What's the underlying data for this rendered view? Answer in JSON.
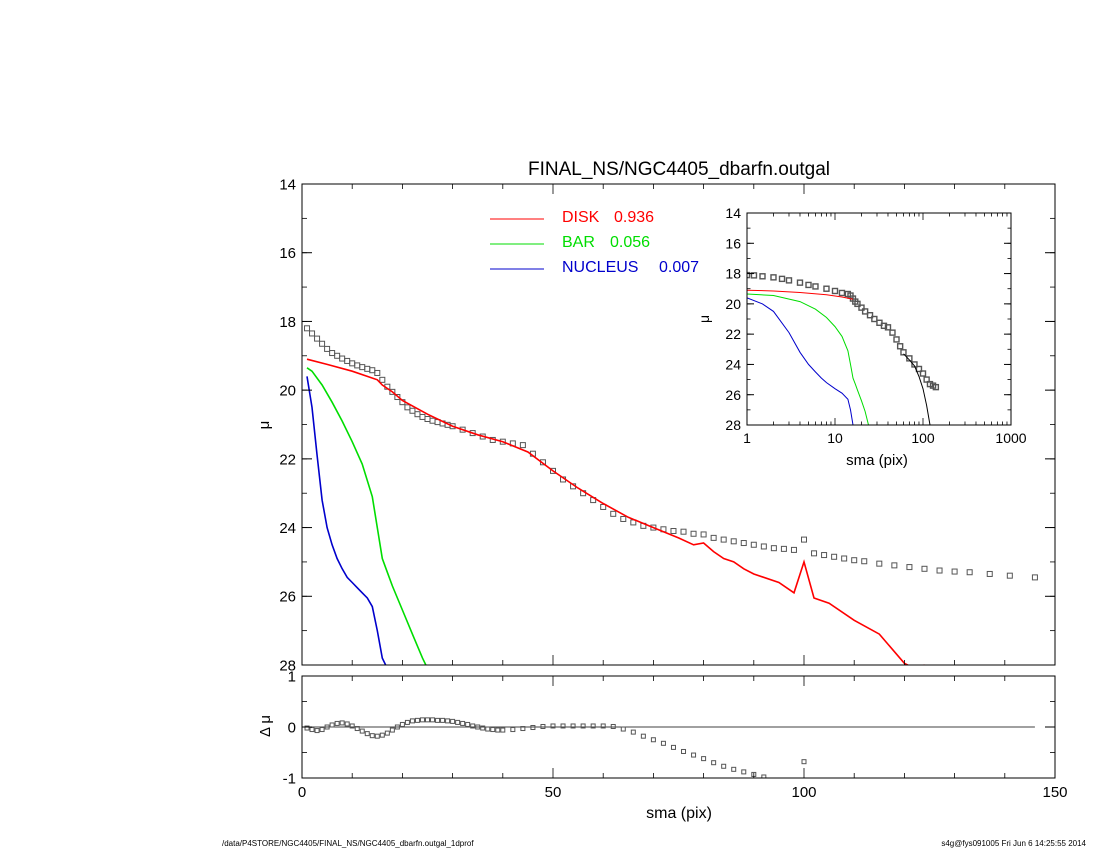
{
  "footer": {
    "path": "/data/P4STORE/NGC4405/FINAL_NS/NGC4405_dbarfn.outgal_1dprof",
    "stamp": "s4g@fys091005  Fri Jun  6 14:25:55 2014"
  },
  "chart_data": [
    {
      "id": "main",
      "type": "scatter",
      "title": "FINAL_NS/NGC4405_dbarfn.outgal",
      "xlabel": "",
      "ylabel": "μ",
      "xlim": [
        0,
        150
      ],
      "ylim": [
        28,
        14
      ],
      "yticks": [
        "14",
        "16",
        "18",
        "20",
        "22",
        "24",
        "26",
        "28"
      ],
      "legend": {
        "placement": "top-center",
        "entries": [
          {
            "label": "DISK",
            "value": "0.936",
            "color": "#ff0000"
          },
          {
            "label": "BAR",
            "value": "0.056",
            "color": "#00dd00"
          },
          {
            "label": "NUCLEUS",
            "value": "0.007",
            "color": "#0000cc"
          }
        ]
      },
      "series": [
        {
          "kind": "data",
          "color": "#555555",
          "x": [
            1,
            2,
            3,
            4,
            5,
            6,
            7,
            8,
            9,
            10,
            11,
            12,
            13,
            14,
            15,
            16,
            17,
            18,
            19,
            20,
            21,
            22,
            23,
            24,
            25,
            26,
            27,
            28,
            29,
            30,
            32,
            34,
            36,
            38,
            40,
            42,
            44,
            46,
            48,
            50,
            52,
            54,
            56,
            58,
            60,
            62,
            64,
            66,
            68,
            70,
            72,
            74,
            76,
            78,
            80,
            82,
            84,
            86,
            88,
            90,
            92,
            94,
            96,
            98,
            100,
            102,
            104,
            106,
            108,
            110,
            112,
            115,
            118,
            121,
            124,
            127,
            130,
            133,
            137,
            141,
            146
          ],
          "y": [
            18.2,
            18.35,
            18.5,
            18.65,
            18.8,
            18.92,
            19.0,
            19.08,
            19.15,
            19.22,
            19.28,
            19.33,
            19.38,
            19.42,
            19.5,
            19.7,
            19.9,
            20.05,
            20.2,
            20.35,
            20.5,
            20.6,
            20.7,
            20.78,
            20.84,
            20.89,
            20.93,
            20.97,
            21.01,
            21.05,
            21.15,
            21.25,
            21.35,
            21.45,
            21.5,
            21.55,
            21.6,
            21.85,
            22.1,
            22.35,
            22.6,
            22.8,
            23.0,
            23.2,
            23.4,
            23.6,
            23.75,
            23.85,
            23.95,
            24.0,
            24.05,
            24.1,
            24.12,
            24.18,
            24.2,
            24.3,
            24.35,
            24.4,
            24.45,
            24.5,
            24.55,
            24.6,
            24.62,
            24.65,
            24.35,
            24.75,
            24.8,
            24.85,
            24.9,
            24.95,
            24.98,
            25.05,
            25.1,
            25.15,
            25.2,
            25.25,
            25.28,
            25.3,
            25.35,
            25.4,
            25.45
          ]
        },
        {
          "kind": "model",
          "name": "DISK",
          "color": "#ff0000",
          "x": [
            1,
            5,
            10,
            15,
            16,
            18,
            20,
            25,
            30,
            35,
            40,
            45,
            50,
            55,
            60,
            65,
            70,
            75,
            78,
            80,
            82,
            84,
            86,
            88,
            90,
            95,
            98,
            100,
            102,
            105,
            110,
            115,
            120,
            122,
            124
          ],
          "y": [
            19.1,
            19.25,
            19.45,
            19.7,
            19.85,
            20.05,
            20.3,
            20.7,
            21.05,
            21.3,
            21.5,
            21.8,
            22.35,
            22.85,
            23.3,
            23.7,
            24.0,
            24.3,
            24.5,
            24.45,
            24.7,
            24.9,
            25.0,
            25.2,
            25.35,
            25.6,
            25.9,
            25.0,
            26.05,
            26.2,
            26.7,
            27.1,
            27.95,
            28.1,
            28.0
          ]
        },
        {
          "kind": "model",
          "name": "BAR",
          "color": "#00dd00",
          "x": [
            1,
            2,
            4,
            6,
            8,
            10,
            12,
            14,
            15,
            16,
            17,
            18,
            20,
            22,
            24,
            25
          ],
          "y": [
            19.35,
            19.45,
            19.85,
            20.35,
            20.9,
            21.5,
            22.15,
            23.1,
            24.0,
            24.9,
            25.3,
            25.7,
            26.4,
            27.1,
            27.8,
            28.1
          ]
        },
        {
          "kind": "model",
          "name": "NUCLEUS",
          "color": "#0000cc",
          "x": [
            1,
            2,
            3,
            4,
            5,
            6,
            7,
            8,
            9,
            10,
            11,
            12,
            13,
            14,
            15,
            16,
            17
          ],
          "y": [
            19.6,
            20.5,
            21.9,
            23.2,
            24.0,
            24.5,
            24.9,
            25.2,
            25.45,
            25.6,
            25.75,
            25.9,
            26.05,
            26.3,
            27.0,
            27.8,
            28.1
          ]
        }
      ]
    },
    {
      "id": "residual",
      "type": "scatter",
      "xlabel": "sma (pix)",
      "ylabel": "Δ μ",
      "xlim": [
        0,
        150
      ],
      "ylim": [
        -1,
        1
      ],
      "xticks": [
        "0",
        "50",
        "100",
        "150"
      ],
      "yticks": [
        "1",
        "0",
        "-1"
      ],
      "series": [
        {
          "kind": "zero-line",
          "color": "#000000",
          "x": [
            0,
            146
          ],
          "y": [
            0,
            0
          ]
        },
        {
          "kind": "data",
          "color": "#555555",
          "x": [
            1,
            2,
            3,
            4,
            5,
            6,
            7,
            8,
            9,
            10,
            11,
            12,
            13,
            14,
            15,
            16,
            17,
            18,
            19,
            20,
            21,
            22,
            23,
            24,
            25,
            26,
            27,
            28,
            29,
            30,
            31,
            32,
            33,
            34,
            35,
            36,
            37,
            38,
            39,
            40,
            42,
            44,
            46,
            48,
            50,
            52,
            54,
            56,
            58,
            60,
            62,
            64,
            66,
            68,
            70,
            72,
            74,
            76,
            78,
            80,
            82,
            84,
            86,
            88,
            90,
            92,
            100
          ],
          "y": [
            -0.02,
            -0.05,
            -0.07,
            -0.05,
            0.0,
            0.04,
            0.07,
            0.08,
            0.06,
            0.02,
            -0.03,
            -0.08,
            -0.13,
            -0.17,
            -0.18,
            -0.16,
            -0.12,
            -0.06,
            0.0,
            0.05,
            0.09,
            0.12,
            0.13,
            0.14,
            0.14,
            0.14,
            0.13,
            0.13,
            0.12,
            0.11,
            0.09,
            0.07,
            0.05,
            0.02,
            0.0,
            -0.02,
            -0.04,
            -0.05,
            -0.06,
            -0.06,
            -0.05,
            -0.03,
            -0.01,
            0.01,
            0.02,
            0.02,
            0.02,
            0.02,
            0.02,
            0.02,
            0.01,
            -0.04,
            -0.1,
            -0.18,
            -0.25,
            -0.32,
            -0.4,
            -0.48,
            -0.55,
            -0.62,
            -0.7,
            -0.77,
            -0.83,
            -0.88,
            -0.93,
            -0.98,
            -0.68
          ]
        }
      ]
    },
    {
      "id": "inset",
      "type": "scatter",
      "xlabel": "sma (pix)",
      "ylabel": "μ",
      "xscale": "log",
      "xlim": [
        1,
        1000
      ],
      "ylim": [
        28,
        14
      ],
      "xticks": [
        "1",
        "10",
        "100",
        "1000"
      ],
      "yticks": [
        "14",
        "16",
        "18",
        "20",
        "22",
        "24",
        "26",
        "28"
      ],
      "series": [
        {
          "kind": "data",
          "color": "#555555",
          "x": [
            1,
            1.2,
            1.5,
            2,
            2.5,
            3,
            4,
            5,
            6,
            8,
            10,
            12,
            14,
            15,
            16,
            17,
            18,
            20,
            22,
            25,
            28,
            32,
            36,
            40,
            45,
            50,
            55,
            60,
            70,
            80,
            90,
            100,
            110,
            120,
            130,
            140
          ],
          "y": [
            18.1,
            18.12,
            18.18,
            18.25,
            18.35,
            18.45,
            18.6,
            18.75,
            18.85,
            19.0,
            19.15,
            19.28,
            19.35,
            19.45,
            19.65,
            19.85,
            20.0,
            20.25,
            20.5,
            20.75,
            21.0,
            21.25,
            21.45,
            21.55,
            21.9,
            22.35,
            22.8,
            23.2,
            23.6,
            24.0,
            24.3,
            24.6,
            25.0,
            25.3,
            25.4,
            25.5
          ]
        },
        {
          "kind": "model",
          "name": "DISK",
          "color": "#ff0000",
          "x": [
            1,
            2,
            4,
            8,
            12,
            16
          ],
          "y": [
            19.1,
            19.15,
            19.25,
            19.4,
            19.55,
            19.7
          ]
        },
        {
          "kind": "model",
          "name": "BAR",
          "color": "#00dd00",
          "x": [
            1,
            2,
            4,
            6,
            8,
            10,
            12,
            14,
            15,
            16,
            17,
            18,
            20,
            22,
            24
          ],
          "y": [
            19.35,
            19.45,
            19.85,
            20.35,
            20.9,
            21.5,
            22.15,
            23.1,
            24.0,
            24.9,
            25.3,
            25.7,
            26.4,
            27.1,
            28.0
          ]
        },
        {
          "kind": "model",
          "name": "NUCLEUS",
          "color": "#0000cc",
          "x": [
            1,
            1.5,
            2,
            3,
            4,
            5,
            6,
            7,
            8,
            10,
            12,
            14,
            15,
            16
          ],
          "y": [
            19.6,
            20.0,
            20.5,
            21.9,
            23.2,
            24.0,
            24.5,
            24.9,
            25.2,
            25.6,
            25.9,
            26.3,
            27.0,
            28.0
          ]
        },
        {
          "kind": "total",
          "color": "#000000",
          "x": [
            60,
            70,
            80,
            90,
            100,
            110,
            120
          ],
          "y": [
            23.3,
            23.7,
            24.1,
            24.8,
            25.6,
            26.7,
            28.0
          ]
        }
      ]
    }
  ]
}
